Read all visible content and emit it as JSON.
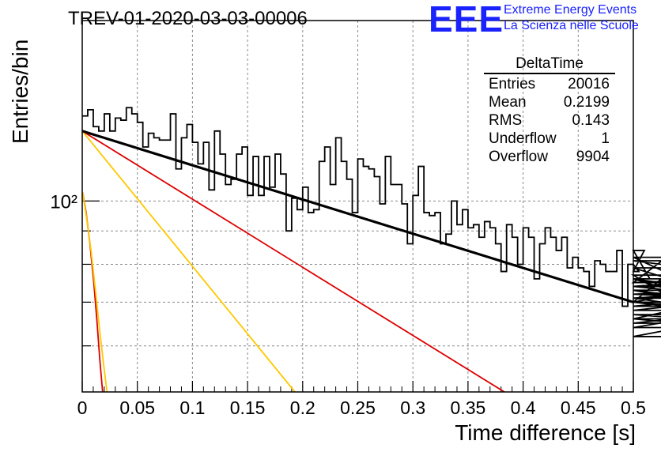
{
  "title": "TREV-01-2020-03-03-00006",
  "logo": {
    "mark": "EEE",
    "line1": "Extreme Energy Events",
    "line2": "La Scienza nelle Scuole",
    "color": "#1a22ff"
  },
  "stats": {
    "name": "DeltaTime",
    "rows": [
      {
        "label": "Entries",
        "value": "20016"
      },
      {
        "label": "Mean",
        "value": "0.2199"
      },
      {
        "label": "RMS",
        "value": "0.143"
      },
      {
        "label": "Underflow",
        "value": "1"
      },
      {
        "label": "Overflow",
        "value": "9904"
      }
    ]
  },
  "chart_data": {
    "type": "line",
    "title": "TREV-01-2020-03-03-00006",
    "xlabel": "Time difference [s]",
    "ylabel": "Entries/bin",
    "xlim": [
      0,
      0.5
    ],
    "ylim": [
      51,
      189
    ],
    "yscale": "log",
    "grid": true,
    "x_ticks": [
      "0",
      "0.05",
      "0.1",
      "0.15",
      "0.2",
      "0.25",
      "0.3",
      "0.35",
      "0.4",
      "0.45",
      "0.5"
    ],
    "y_ticks": [
      "10²"
    ],
    "bin_width": 0.005,
    "series": [
      {
        "kind": "histogram",
        "color": "#000000",
        "values": [
          135,
          138,
          130,
          128,
          136,
          128,
          134,
          133,
          139,
          136,
          132,
          121,
          127,
          125,
          124,
          124,
          136,
          112,
          125,
          131,
          123,
          114,
          123,
          104,
          128,
          118,
          106,
          108,
          118,
          121,
          102,
          117,
          102,
          117,
          105,
          118,
          110,
          90,
          101,
          97,
          105,
          96,
          97,
          115,
          121,
          106,
          125,
          115,
          108,
          96,
          116,
          113,
          112,
          109,
          99,
          117,
          106,
          106,
          99,
          86,
          102,
          113,
          96,
          95,
          96,
          86,
          89,
          100,
          92,
          97,
          91,
          92,
          88,
          93,
          91,
          86,
          78,
          92,
          88,
          80,
          91,
          88,
          76,
          86,
          91,
          88,
          84,
          88,
          79,
          82,
          79,
          78,
          74,
          81,
          80,
          78,
          78,
          84,
          69,
          80,
          80,
          78,
          84,
          76,
          76,
          75,
          82,
          77,
          70,
          81,
          79,
          74,
          75,
          76,
          70,
          74,
          74,
          76,
          72,
          73,
          68,
          71,
          73,
          69,
          72,
          70,
          66,
          74,
          70,
          70,
          67,
          64,
          71,
          65,
          70,
          66,
          62,
          71,
          64,
          64
        ]
      },
      {
        "kind": "fit",
        "color": "#000000",
        "x": [
          0,
          0.5
        ],
        "y": [
          128,
          70
        ]
      },
      {
        "kind": "fit",
        "color": "#dd0000",
        "x": [
          0,
          0.383
        ],
        "y": [
          128,
          51
        ]
      },
      {
        "kind": "fit",
        "color": "#ffc800",
        "x": [
          0,
          0.193
        ],
        "y": [
          128,
          51
        ]
      },
      {
        "kind": "fit",
        "color": "#dd0000",
        "x": [
          0.0005,
          0.0035,
          0.007,
          0.0105,
          0.0135,
          0.016,
          0.0185
        ],
        "y": [
          103,
          96,
          86,
          75,
          65,
          57,
          51
        ]
      },
      {
        "kind": "fit",
        "color": "#ffc800",
        "x": [
          0.0005,
          0.004,
          0.008,
          0.012,
          0.016,
          0.0195,
          0.0225
        ],
        "y": [
          103,
          94,
          84,
          73,
          63,
          56,
          51
        ]
      }
    ]
  }
}
